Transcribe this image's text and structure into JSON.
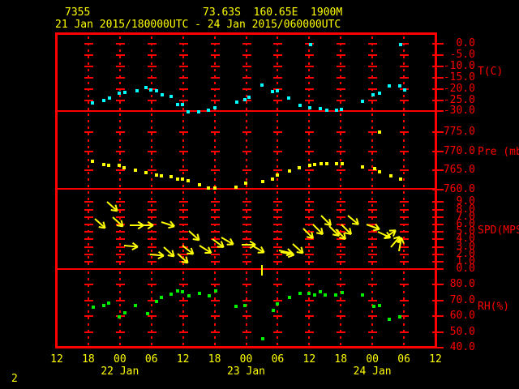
{
  "header": {
    "station_id": "7355",
    "station_info": "73.63S  160.65E  1900M",
    "period": "21 Jan 2015/180000UTC - 24 Jan 2015/060000UTC"
  },
  "footer": {
    "page_number": "2"
  },
  "colors": {
    "background": "#000000",
    "frame": "#ff0000",
    "axis_text": "#ff0000",
    "header_text": "#ffff00",
    "temperature": "#00ffff",
    "pressure": "#ffff00",
    "wind": "#ffff00",
    "humidity": "#00ee00"
  },
  "xaxis": {
    "total_hours": 72,
    "start": "21 Jan 2015 12UTC",
    "hour_ticks": [
      {
        "h": 0,
        "label": "12"
      },
      {
        "h": 6,
        "label": "18"
      },
      {
        "h": 12,
        "label": "00"
      },
      {
        "h": 18,
        "label": "06"
      },
      {
        "h": 24,
        "label": "12"
      },
      {
        "h": 30,
        "label": "18"
      },
      {
        "h": 36,
        "label": "00"
      },
      {
        "h": 42,
        "label": "06"
      },
      {
        "h": 48,
        "label": "12"
      },
      {
        "h": 54,
        "label": "18"
      },
      {
        "h": 60,
        "label": "00"
      },
      {
        "h": 66,
        "label": "06"
      },
      {
        "h": 72,
        "label": "12"
      }
    ],
    "day_labels": [
      {
        "h": 12,
        "label": "22 Jan"
      },
      {
        "h": 36,
        "label": "23 Jan"
      },
      {
        "h": 60,
        "label": "24 Jan"
      }
    ]
  },
  "chart_data": [
    {
      "id": "temperature",
      "type": "scatter",
      "ylabel": "T(C)",
      "ylim": [
        -30,
        0
      ],
      "ytick_labels": [
        "0.0",
        "-5.0",
        "-10.0",
        "-15.0",
        "-20.0",
        "-25.0",
        "-30.0"
      ],
      "marker_color": "#00ffff",
      "points": [
        [
          6.8,
          -26.4
        ],
        [
          9.0,
          -25.3
        ],
        [
          10.0,
          -24.0
        ],
        [
          11.9,
          -21.9
        ],
        [
          12.9,
          -21.7
        ],
        [
          15.2,
          -21.0
        ],
        [
          17.0,
          -19.3
        ],
        [
          17.9,
          -20.4
        ],
        [
          19.0,
          -20.7
        ],
        [
          20.0,
          -22.5
        ],
        [
          21.8,
          -23.4
        ],
        [
          22.9,
          -27.1
        ],
        [
          23.9,
          -27.1
        ],
        [
          25.0,
          -30.1
        ],
        [
          27.0,
          -30.3
        ],
        [
          28.9,
          -29.4
        ],
        [
          30.0,
          -28.5
        ],
        [
          34.3,
          -25.8
        ],
        [
          35.8,
          -24.9
        ],
        [
          36.5,
          -23.7
        ],
        [
          39.0,
          -18.3
        ],
        [
          41.0,
          -21.1
        ],
        [
          42.0,
          -20.7
        ],
        [
          44.1,
          -24.0
        ],
        [
          46.3,
          -27.3
        ],
        [
          48.1,
          -28.5
        ],
        [
          48.2,
          -0.4
        ],
        [
          50.1,
          -28.8
        ],
        [
          51.4,
          -29.5
        ],
        [
          53.2,
          -29.4
        ],
        [
          54.1,
          -29.1
        ],
        [
          58.1,
          -25.5
        ],
        [
          60.1,
          -22.5
        ],
        [
          61.3,
          -21.9
        ],
        [
          63.2,
          -18.7
        ],
        [
          65.2,
          -18.6
        ],
        [
          65.3,
          -0.4
        ],
        [
          66.2,
          -20.4
        ]
      ]
    },
    {
      "id": "pressure",
      "type": "scatter",
      "ylabel": "Pre (mb)",
      "ylim": [
        760,
        775
      ],
      "ytick_labels": [
        "775.0",
        "770.0",
        "765.0",
        "760.0"
      ],
      "marker_color": "#ffff00",
      "points": [
        [
          6.8,
          767.3
        ],
        [
          8.9,
          766.4
        ],
        [
          9.9,
          766.2
        ],
        [
          11.8,
          766.2
        ],
        [
          12.8,
          765.7
        ],
        [
          15.0,
          764.9
        ],
        [
          17.0,
          764.3
        ],
        [
          18.9,
          763.8
        ],
        [
          19.9,
          763.6
        ],
        [
          21.8,
          763.2
        ],
        [
          22.9,
          762.7
        ],
        [
          23.9,
          762.6
        ],
        [
          25.0,
          762.2
        ],
        [
          27.1,
          761.1
        ],
        [
          28.9,
          760.3
        ],
        [
          30.1,
          760.3
        ],
        [
          34.1,
          760.5
        ],
        [
          35.9,
          761.5
        ],
        [
          39.1,
          762.0
        ],
        [
          41.0,
          762.7
        ],
        [
          42.0,
          763.7
        ],
        [
          44.2,
          764.8
        ],
        [
          46.1,
          765.7
        ],
        [
          48.1,
          766.3
        ],
        [
          49.1,
          766.4
        ],
        [
          50.3,
          766.6
        ],
        [
          51.3,
          766.6
        ],
        [
          53.2,
          766.6
        ],
        [
          54.2,
          766.6
        ],
        [
          58.1,
          765.9
        ],
        [
          60.4,
          765.4
        ],
        [
          61.3,
          764.6
        ],
        [
          61.4,
          775.1
        ],
        [
          63.5,
          763.6
        ],
        [
          65.3,
          762.7
        ]
      ]
    },
    {
      "id": "wind_speed",
      "type": "vector",
      "ylabel": "SPD(MPS)",
      "ylim": [
        0,
        9
      ],
      "ytick_labels": [
        "9.0",
        "8.0",
        "7.0",
        "6.0",
        "5.0",
        "4.0",
        "3.0",
        "2.0",
        "1.0",
        "0.0"
      ],
      "marker_color": "#ffff00",
      "arrows": [
        [
          7.2,
          6.8,
          42
        ],
        [
          9.6,
          9.0,
          42
        ],
        [
          10.6,
          7.0,
          42
        ],
        [
          12.8,
          3.2,
          5
        ],
        [
          13.9,
          5.9,
          0
        ],
        [
          15.7,
          5.9,
          0
        ],
        [
          17.7,
          2.0,
          5
        ],
        [
          19.9,
          6.3,
          18
        ],
        [
          20.3,
          3.0,
          42
        ],
        [
          23.0,
          2.1,
          42
        ],
        [
          23.9,
          3.2,
          38
        ],
        [
          25.1,
          5.1,
          42
        ],
        [
          27.1,
          3.2,
          32
        ],
        [
          29.6,
          4.0,
          36
        ],
        [
          31.3,
          4.2,
          30
        ],
        [
          35.2,
          3.3,
          0
        ],
        [
          37.2,
          3.2,
          30
        ],
        [
          42.2,
          2.5,
          12
        ],
        [
          42.6,
          2.3,
          12
        ],
        [
          44.9,
          3.4,
          42
        ],
        [
          46.9,
          5.4,
          45
        ],
        [
          48.7,
          6.0,
          45
        ],
        [
          50.3,
          7.2,
          45
        ],
        [
          51.8,
          5.8,
          45
        ],
        [
          53.0,
          5.3,
          45
        ],
        [
          54.1,
          6.0,
          45
        ],
        [
          55.4,
          7.2,
          40
        ],
        [
          58.9,
          6.0,
          20
        ],
        [
          61.1,
          5.0,
          25
        ],
        [
          62.3,
          4.1,
          -35
        ],
        [
          63.5,
          2.9,
          -50
        ],
        [
          65.1,
          2.4,
          -80
        ]
      ],
      "calm_marks": [
        [
          39.0
        ]
      ]
    },
    {
      "id": "relative_humidity",
      "type": "scatter",
      "ylabel": "RH(%)",
      "ylim": [
        40,
        80
      ],
      "ytick_labels": [
        "80.0",
        "70.0",
        "60.0",
        "50.0",
        "40.0"
      ],
      "marker_color": "#00ee00",
      "points": [
        [
          6.9,
          65.5
        ],
        [
          9.0,
          66.9
        ],
        [
          9.9,
          68.5
        ],
        [
          11.9,
          59.6
        ],
        [
          13.0,
          61.9
        ],
        [
          15.0,
          66.9
        ],
        [
          17.2,
          61.4
        ],
        [
          18.9,
          69.4
        ],
        [
          19.9,
          71.7
        ],
        [
          21.8,
          73.9
        ],
        [
          23.0,
          75.9
        ],
        [
          23.9,
          75.5
        ],
        [
          25.1,
          73.0
        ],
        [
          27.1,
          74.2
        ],
        [
          29.0,
          72.7
        ],
        [
          30.2,
          75.9
        ],
        [
          34.1,
          66.0
        ],
        [
          35.8,
          66.6
        ],
        [
          39.1,
          45.9
        ],
        [
          41.1,
          63.9
        ],
        [
          42.0,
          67.7
        ],
        [
          44.2,
          71.7
        ],
        [
          46.2,
          74.4
        ],
        [
          48.0,
          74.4
        ],
        [
          49.1,
          73.4
        ],
        [
          50.1,
          75.5
        ],
        [
          51.1,
          73.4
        ],
        [
          53.1,
          73.5
        ],
        [
          54.2,
          75.0
        ],
        [
          58.2,
          73.4
        ],
        [
          60.3,
          66.4
        ],
        [
          61.3,
          66.9
        ],
        [
          63.2,
          58.0
        ],
        [
          65.2,
          59.7
        ]
      ]
    }
  ]
}
